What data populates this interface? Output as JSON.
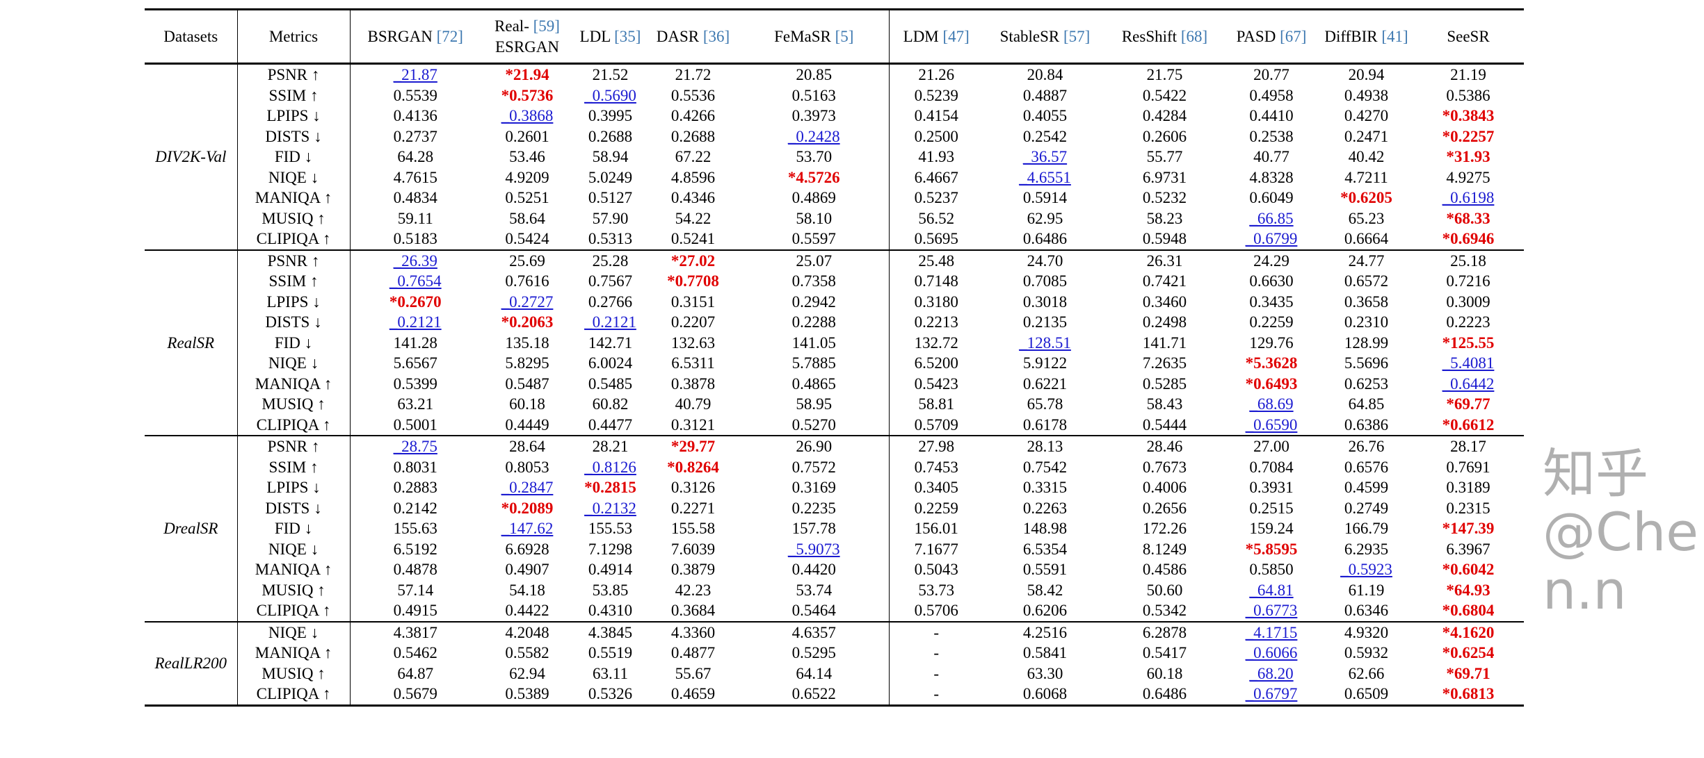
{
  "header": {
    "datasets": "Datasets",
    "metrics": "Metrics",
    "methods": [
      {
        "name": "BSRGAN",
        "cite": "[72]"
      },
      {
        "name": "Real-",
        "cite": "[59]",
        "name2": "ESRGAN"
      },
      {
        "name": "LDL",
        "cite": "[35]"
      },
      {
        "name": "DASR",
        "cite": "[36]"
      },
      {
        "name": "FeMaSR",
        "cite": "[5]"
      },
      {
        "name": "LDM",
        "cite": "[47]"
      },
      {
        "name": "StableSR",
        "cite": "[57]"
      },
      {
        "name": "ResShift",
        "cite": "[68]"
      },
      {
        "name": "PASD",
        "cite": "[67]"
      },
      {
        "name": "DiffBIR",
        "cite": "[41]"
      },
      {
        "name": "SeeSR",
        "cite": ""
      }
    ]
  },
  "legend_note": "* = best (bold red), _ = second best (underlined blue)",
  "sections": [
    {
      "dataset": "DIV2K-Val",
      "rows": [
        {
          "metric": "PSNR ↑",
          "values": [
            "_21.87",
            "*21.94",
            "21.52",
            "21.72",
            "20.85",
            "21.26",
            "20.84",
            "21.75",
            "20.77",
            "20.94",
            "21.19"
          ]
        },
        {
          "metric": "SSIM ↑",
          "values": [
            "0.5539",
            "*0.5736",
            "_0.5690",
            "0.5536",
            "0.5163",
            "0.5239",
            "0.4887",
            "0.5422",
            "0.4958",
            "0.4938",
            "0.5386"
          ]
        },
        {
          "metric": "LPIPS ↓",
          "values": [
            "0.4136",
            "_0.3868",
            "0.3995",
            "0.4266",
            "0.3973",
            "0.4154",
            "0.4055",
            "0.4284",
            "0.4410",
            "0.4270",
            "*0.3843"
          ]
        },
        {
          "metric": "DISTS ↓",
          "values": [
            "0.2737",
            "0.2601",
            "0.2688",
            "0.2688",
            "_0.2428",
            "0.2500",
            "0.2542",
            "0.2606",
            "0.2538",
            "0.2471",
            "*0.2257"
          ]
        },
        {
          "metric": "FID ↓",
          "values": [
            "64.28",
            "53.46",
            "58.94",
            "67.22",
            "53.70",
            "41.93",
            "_36.57",
            "55.77",
            "40.77",
            "40.42",
            "*31.93"
          ]
        },
        {
          "metric": "NIQE ↓",
          "values": [
            "4.7615",
            "4.9209",
            "5.0249",
            "4.8596",
            "*4.5726",
            "6.4667",
            "_4.6551",
            "6.9731",
            "4.8328",
            "4.7211",
            "4.9275"
          ]
        },
        {
          "metric": "MANIQA ↑",
          "values": [
            "0.4834",
            "0.5251",
            "0.5127",
            "0.4346",
            "0.4869",
            "0.5237",
            "0.5914",
            "0.5232",
            "0.6049",
            "*0.6205",
            "_0.6198"
          ]
        },
        {
          "metric": "MUSIQ ↑",
          "values": [
            "59.11",
            "58.64",
            "57.90",
            "54.22",
            "58.10",
            "56.52",
            "62.95",
            "58.23",
            "_66.85",
            "65.23",
            "*68.33"
          ]
        },
        {
          "metric": "CLIPIQA ↑",
          "values": [
            "0.5183",
            "0.5424",
            "0.5313",
            "0.5241",
            "0.5597",
            "0.5695",
            "0.6486",
            "0.5948",
            "_0.6799",
            "0.6664",
            "*0.6946"
          ]
        }
      ]
    },
    {
      "dataset": "RealSR",
      "rows": [
        {
          "metric": "PSNR ↑",
          "values": [
            "_26.39",
            "25.69",
            "25.28",
            "*27.02",
            "25.07",
            "25.48",
            "24.70",
            "26.31",
            "24.29",
            "24.77",
            "25.18"
          ]
        },
        {
          "metric": "SSIM ↑",
          "values": [
            "_0.7654",
            "0.7616",
            "0.7567",
            "*0.7708",
            "0.7358",
            "0.7148",
            "0.7085",
            "0.7421",
            "0.6630",
            "0.6572",
            "0.7216"
          ]
        },
        {
          "metric": "LPIPS ↓",
          "values": [
            "*0.2670",
            "_0.2727",
            "0.2766",
            "0.3151",
            "0.2942",
            "0.3180",
            "0.3018",
            "0.3460",
            "0.3435",
            "0.3658",
            "0.3009"
          ]
        },
        {
          "metric": "DISTS ↓",
          "values": [
            "_0.2121",
            "*0.2063",
            "_0.2121",
            "0.2207",
            "0.2288",
            "0.2213",
            "0.2135",
            "0.2498",
            "0.2259",
            "0.2310",
            "0.2223"
          ]
        },
        {
          "metric": "FID ↓",
          "values": [
            "141.28",
            "135.18",
            "142.71",
            "132.63",
            "141.05",
            "132.72",
            "_128.51",
            "141.71",
            "129.76",
            "128.99",
            "*125.55"
          ]
        },
        {
          "metric": "NIQE ↓",
          "values": [
            "5.6567",
            "5.8295",
            "6.0024",
            "6.5311",
            "5.7885",
            "6.5200",
            "5.9122",
            "7.2635",
            "*5.3628",
            "5.5696",
            "_5.4081"
          ]
        },
        {
          "metric": "MANIQA ↑",
          "values": [
            "0.5399",
            "0.5487",
            "0.5485",
            "0.3878",
            "0.4865",
            "0.5423",
            "0.6221",
            "0.5285",
            "*0.6493",
            "0.6253",
            "_0.6442"
          ]
        },
        {
          "metric": "MUSIQ ↑",
          "values": [
            "63.21",
            "60.18",
            "60.82",
            "40.79",
            "58.95",
            "58.81",
            "65.78",
            "58.43",
            "_68.69",
            "64.85",
            "*69.77"
          ]
        },
        {
          "metric": "CLIPIQA ↑",
          "values": [
            "0.5001",
            "0.4449",
            "0.4477",
            "0.3121",
            "0.5270",
            "0.5709",
            "0.6178",
            "0.5444",
            "_0.6590",
            "0.6386",
            "*0.6612"
          ]
        }
      ]
    },
    {
      "dataset": "DrealSR",
      "rows": [
        {
          "metric": "PSNR ↑",
          "values": [
            "_28.75",
            "28.64",
            "28.21",
            "*29.77",
            "26.90",
            "27.98",
            "28.13",
            "28.46",
            "27.00",
            "26.76",
            "28.17"
          ]
        },
        {
          "metric": "SSIM ↑",
          "values": [
            "0.8031",
            "0.8053",
            "_0.8126",
            "*0.8264",
            "0.7572",
            "0.7453",
            "0.7542",
            "0.7673",
            "0.7084",
            "0.6576",
            "0.7691"
          ]
        },
        {
          "metric": "LPIPS ↓",
          "values": [
            "0.2883",
            "_0.2847",
            "*0.2815",
            "0.3126",
            "0.3169",
            "0.3405",
            "0.3315",
            "0.4006",
            "0.3931",
            "0.4599",
            "0.3189"
          ]
        },
        {
          "metric": "DISTS ↓",
          "values": [
            "0.2142",
            "*0.2089",
            "_0.2132",
            "0.2271",
            "0.2235",
            "0.2259",
            "0.2263",
            "0.2656",
            "0.2515",
            "0.2749",
            "0.2315"
          ]
        },
        {
          "metric": "FID ↓",
          "values": [
            "155.63",
            "_147.62",
            "155.53",
            "155.58",
            "157.78",
            "156.01",
            "148.98",
            "172.26",
            "159.24",
            "166.79",
            "*147.39"
          ]
        },
        {
          "metric": "NIQE ↓",
          "values": [
            "6.5192",
            "6.6928",
            "7.1298",
            "7.6039",
            "_5.9073",
            "7.1677",
            "6.5354",
            "8.1249",
            "*5.8595",
            "6.2935",
            "6.3967"
          ]
        },
        {
          "metric": "MANIQA ↑",
          "values": [
            "0.4878",
            "0.4907",
            "0.4914",
            "0.3879",
            "0.4420",
            "0.5043",
            "0.5591",
            "0.4586",
            "0.5850",
            "_0.5923",
            "*0.6042"
          ]
        },
        {
          "metric": "MUSIQ ↑",
          "values": [
            "57.14",
            "54.18",
            "53.85",
            "42.23",
            "53.74",
            "53.73",
            "58.42",
            "50.60",
            "_64.81",
            "61.19",
            "*64.93"
          ]
        },
        {
          "metric": "CLIPIQA ↑",
          "values": [
            "0.4915",
            "0.4422",
            "0.4310",
            "0.3684",
            "0.5464",
            "0.5706",
            "0.6206",
            "0.5342",
            "_0.6773",
            "0.6346",
            "*0.6804"
          ]
        }
      ]
    },
    {
      "dataset": "RealLR200",
      "rows": [
        {
          "metric": "NIQE ↓",
          "values": [
            "4.3817",
            "4.2048",
            "4.3845",
            "4.3360",
            "4.6357",
            "-",
            "4.2516",
            "6.2878",
            "_4.1715",
            "4.9320",
            "*4.1620"
          ]
        },
        {
          "metric": "MANIQA ↑",
          "values": [
            "0.5462",
            "0.5582",
            "0.5519",
            "0.4877",
            "0.5295",
            "-",
            "0.5841",
            "0.5417",
            "_0.6066",
            "0.5932",
            "*0.6254"
          ]
        },
        {
          "metric": "MUSIQ ↑",
          "values": [
            "64.87",
            "62.94",
            "63.11",
            "55.67",
            "64.14",
            "-",
            "63.30",
            "60.18",
            "_68.20",
            "62.66",
            "*69.71"
          ]
        },
        {
          "metric": "CLIPIQA ↑",
          "values": [
            "0.5679",
            "0.5389",
            "0.5326",
            "0.4659",
            "0.6522",
            "-",
            "0.6068",
            "0.6486",
            "_0.6797",
            "0.6509",
            "*0.6813"
          ]
        }
      ]
    }
  ],
  "watermark": "知乎 @Chen.n"
}
